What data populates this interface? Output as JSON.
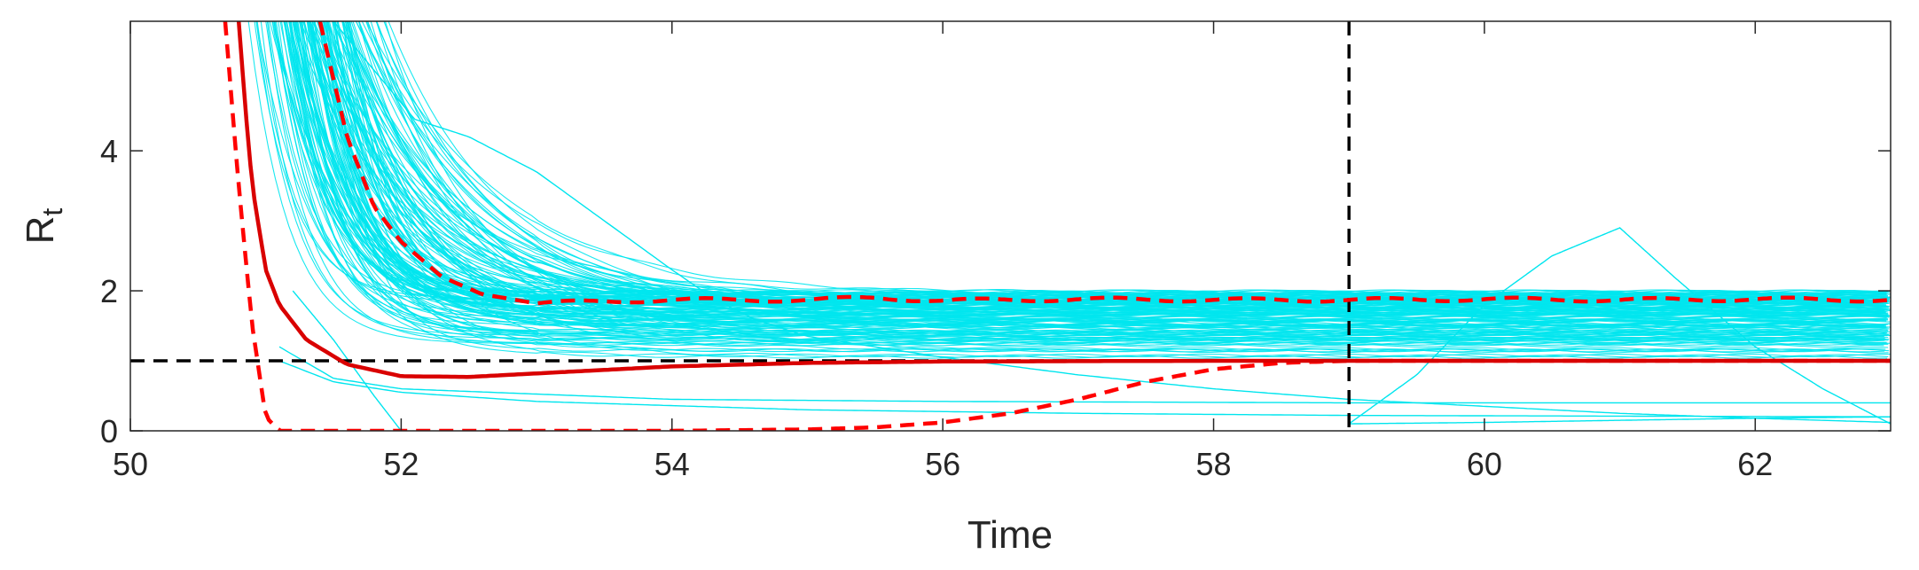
{
  "chart_data": {
    "type": "line",
    "title": "",
    "xlabel": "Time",
    "ylabel": {
      "main": "R",
      "subscript": "t"
    },
    "xlim": [
      50,
      63
    ],
    "ylim": [
      0,
      5.85
    ],
    "xticks": [
      50,
      52,
      54,
      56,
      58,
      60,
      62
    ],
    "yticks": [
      0,
      2,
      4
    ],
    "xtick_labels": [
      "50",
      "52",
      "54",
      "56",
      "58",
      "60",
      "62"
    ],
    "ytick_labels": [
      "0",
      "2",
      "4"
    ],
    "grid": false,
    "legend": "none",
    "colors": {
      "samples": "#00e5ee",
      "median": "#d90000",
      "bounds": "#ff0000",
      "reference": "#000000"
    },
    "series": [
      {
        "role": "median",
        "style": "solid",
        "x": [
          50.8,
          50.85,
          50.9,
          51.0,
          51.1,
          51.3,
          51.6,
          52.0,
          52.5,
          53.0,
          54.0,
          55.0,
          56.0,
          58.0,
          60.0,
          63.0
        ],
        "values": [
          5.85,
          4.6,
          3.5,
          2.3,
          1.8,
          1.3,
          0.95,
          0.78,
          0.77,
          0.82,
          0.92,
          0.97,
          0.99,
          1.0,
          1.0,
          1.0
        ]
      },
      {
        "role": "upper_bound",
        "style": "dashed",
        "x": [
          51.4,
          51.6,
          51.8,
          52.0,
          52.3,
          52.6,
          53.0,
          53.5,
          54.0,
          55.0,
          55.5,
          56.0,
          57.0,
          58.0,
          59.0,
          60.0,
          61.0,
          62.0,
          63.0
        ],
        "values": [
          5.85,
          4.2,
          3.2,
          2.7,
          2.2,
          1.95,
          1.82,
          1.85,
          1.87,
          1.87,
          1.9,
          1.86,
          1.88,
          1.87,
          1.87,
          1.88,
          1.87,
          1.88,
          1.87
        ],
        "x_wave": [
          53.0,
          63.0
        ],
        "wave_amplitude": 0.025
      },
      {
        "role": "lower_bound",
        "style": "dashed",
        "x": [
          50.7,
          50.8,
          50.9,
          51.0,
          51.1,
          52.0,
          53.0,
          54.0,
          55.0,
          55.5,
          56.0,
          56.5,
          57.0,
          57.5,
          58.0,
          58.5,
          59.0,
          60.0,
          63.0
        ],
        "values": [
          5.85,
          3.5,
          1.5,
          0.2,
          0.0,
          0.0,
          0.0,
          0.0,
          0.02,
          0.05,
          0.12,
          0.25,
          0.45,
          0.7,
          0.88,
          0.97,
          1.0,
          1.0,
          1.0
        ]
      }
    ],
    "samples": {
      "style": "thin",
      "count": 160,
      "t0_range": [
        50.75,
        51.35
      ],
      "rate_range": [
        0.9,
        3.6
      ],
      "plateau_range": [
        1.0,
        2.0
      ],
      "x_wave": [
        53.0,
        63.0
      ],
      "outliers": [
        {
          "x": [
            51.5,
            52.1,
            52.5,
            53.0,
            53.5,
            54.0,
            54.3,
            54.6,
            55.0,
            56.0,
            57.0,
            58.0,
            59.0,
            60.0,
            61.0,
            62.0,
            63.0
          ],
          "values": [
            5.85,
            4.45,
            4.2,
            3.7,
            3.0,
            2.3,
            1.9,
            1.6,
            1.35,
            1.05,
            0.8,
            0.6,
            0.45,
            0.35,
            0.25,
            0.18,
            0.12
          ]
        },
        {
          "x": [
            59.0,
            59.5,
            60.0,
            60.5,
            61.0,
            61.4,
            62.0,
            62.5,
            63.0
          ],
          "values": [
            0.1,
            0.8,
            1.8,
            2.5,
            2.9,
            2.2,
            1.2,
            0.6,
            0.1
          ]
        },
        {
          "x": [
            51.2,
            51.5,
            51.8,
            52.0
          ],
          "values": [
            2.0,
            1.3,
            0.5,
            0.0
          ]
        },
        {
          "x": [
            51.1,
            51.5,
            52.0,
            53.0,
            55.0,
            57.0,
            59.0,
            63.0
          ],
          "values": [
            1.0,
            0.7,
            0.55,
            0.42,
            0.3,
            0.25,
            0.22,
            0.2
          ]
        },
        {
          "x": [
            51.1,
            51.5,
            52.0,
            54.0,
            56.0,
            59.0,
            63.0
          ],
          "values": [
            1.2,
            0.75,
            0.6,
            0.45,
            0.42,
            0.4,
            0.4
          ]
        },
        {
          "x": [
            59.0,
            60.0,
            61.0,
            62.0,
            63.0
          ],
          "values": [
            0.1,
            0.12,
            0.15,
            0.18,
            0.2
          ]
        }
      ]
    },
    "reference_lines": [
      {
        "orientation": "horizontal",
        "y": 1.0,
        "style": "dashed"
      },
      {
        "orientation": "vertical",
        "x": 59.0,
        "style": "dashed"
      }
    ]
  }
}
